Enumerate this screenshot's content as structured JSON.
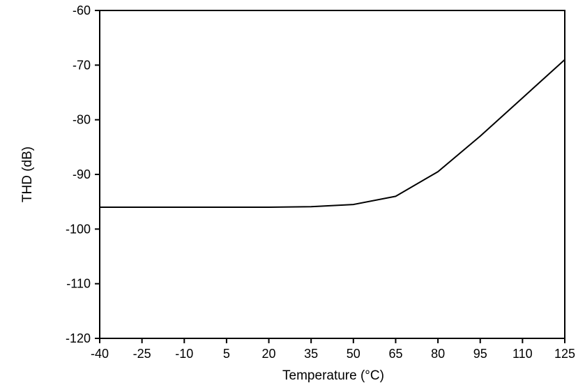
{
  "figure": {
    "background": "#ffffff",
    "frame_color": "#000000"
  },
  "chart_data": {
    "type": "line",
    "title": "",
    "xlabel": "Temperature (°C)",
    "ylabel": "THD (dB)",
    "x": [
      -40,
      -25,
      -10,
      5,
      20,
      35,
      50,
      65,
      80,
      95,
      110,
      125
    ],
    "series": [
      {
        "name": "THD",
        "color": "#000000",
        "values": [
          -96,
          -96,
          -96,
          -96,
          -96,
          -95.9,
          -95.5,
          -94,
          -89.5,
          -83,
          -76,
          -69
        ]
      }
    ],
    "xlim": [
      -40,
      125
    ],
    "ylim": [
      -120,
      -60
    ],
    "xticks": [
      -40,
      -25,
      -10,
      5,
      20,
      35,
      50,
      65,
      80,
      95,
      110,
      125
    ],
    "yticks": [
      -120,
      -110,
      -100,
      -90,
      -80,
      -70,
      -60
    ],
    "grid": false,
    "legend": "none"
  }
}
